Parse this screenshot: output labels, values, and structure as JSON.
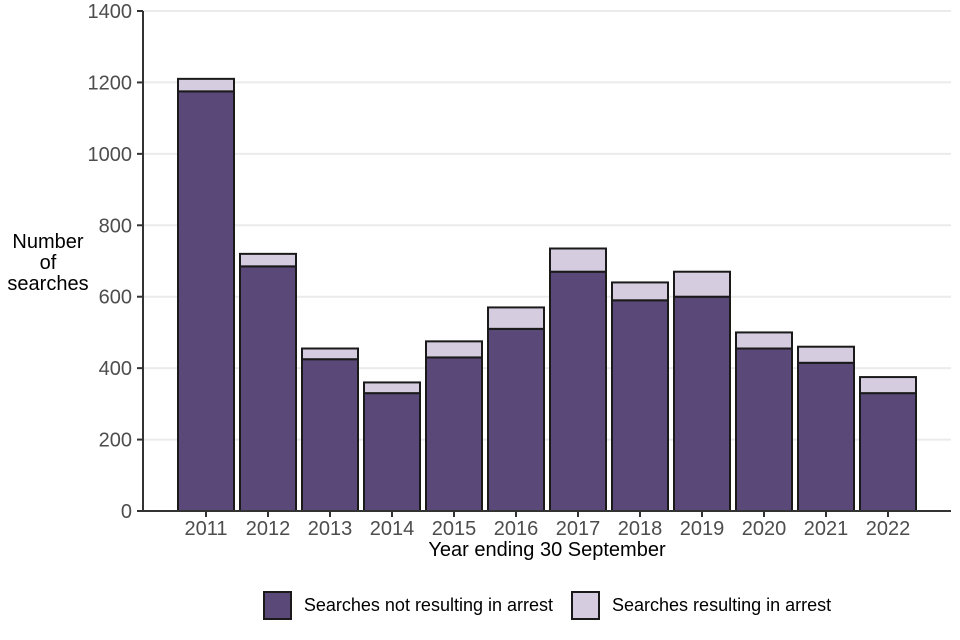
{
  "chart_data": {
    "type": "bar",
    "stacked": true,
    "categories": [
      "2011",
      "2012",
      "2013",
      "2014",
      "2015",
      "2016",
      "2017",
      "2018",
      "2019",
      "2020",
      "2021",
      "2022"
    ],
    "series": [
      {
        "name": "Searches not resulting in arrest",
        "color": "#5a4878",
        "values": [
          1175,
          685,
          425,
          330,
          430,
          510,
          670,
          590,
          600,
          455,
          415,
          330
        ]
      },
      {
        "name": "Searches resulting in arrest",
        "color": "#d5cce0",
        "values": [
          35,
          35,
          30,
          30,
          45,
          60,
          65,
          50,
          70,
          45,
          45,
          45
        ]
      }
    ],
    "totals": [
      1210,
      720,
      455,
      360,
      475,
      570,
      735,
      640,
      670,
      500,
      460,
      375
    ],
    "title": "",
    "xlabel": "Year ending 30 September",
    "ylabel_lines": [
      "Number",
      "of",
      "searches"
    ],
    "ylim": [
      0,
      1400
    ],
    "yticks": [
      0,
      200,
      400,
      600,
      800,
      1000,
      1200,
      1400
    ],
    "grid": "horizontal",
    "legend_position": "bottom",
    "colors": {
      "bar_outline": "#1a1a1a",
      "gridline": "#ebebeb",
      "axis_line": "#333333",
      "tick_label": "#4d4d4d",
      "axis_title": "#000000",
      "background": "#ffffff"
    }
  }
}
